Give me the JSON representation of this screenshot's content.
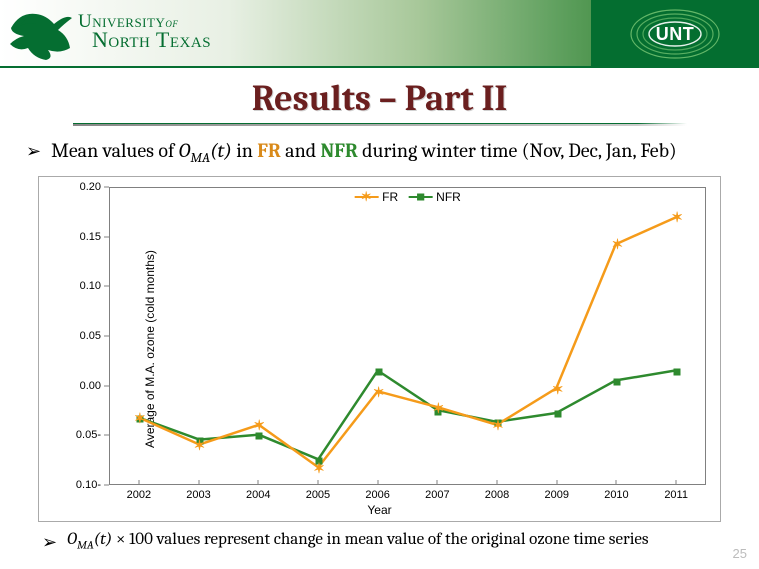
{
  "header": {
    "university_line1_a": "University",
    "university_line1_of": "of",
    "university_line2": "North Texas",
    "badge_text": "UNT",
    "brand_green": "#056e31",
    "badge_bg": "#046e30"
  },
  "title": "Results – Part II",
  "title_color": "#6b1f1f",
  "bullet1_pre": "Mean values of ",
  "bullet1_var_a": "O",
  "bullet1_var_sub": "MA",
  "bullet1_var_b": "(t)",
  "bullet1_mid": " in ",
  "bullet1_fr": "FR",
  "bullet1_and": " and ",
  "bullet1_nfr": "NFR",
  "bullet1_post": " during winter time (Nov, Dec, Jan, Feb)",
  "bullet2": "𝑂MA(𝑡) × 100 values represent change in mean value of the original ozone time series",
  "page_number": "25",
  "chart": {
    "type": "line",
    "xlabel": "Year",
    "ylabel": "Average of M.A. ozone (cold months)",
    "background_color": "#ffffff",
    "border_color": "#808080",
    "ylim": [
      -0.1,
      0.2
    ],
    "yticks": [
      -0.1,
      -0.05,
      0.0,
      0.05,
      0.1,
      0.15,
      0.2
    ],
    "ytick_labels": [
      "-0.10",
      "-0.05",
      "0.00",
      "0.05",
      "0.10",
      "0.15",
      "0.20"
    ],
    "categories": [
      "2002",
      "2003",
      "2004",
      "2005",
      "2006",
      "2007",
      "2008",
      "2009",
      "2010",
      "2011"
    ],
    "legend_labels": {
      "fr": "FR",
      "nfr": "NFR"
    },
    "legend_position": "top-center",
    "series": {
      "fr": {
        "label": "FR",
        "color": "#f59b1a",
        "marker": "x",
        "line_width": 2.5,
        "values": [
          -0.033,
          -0.06,
          -0.04,
          -0.083,
          -0.006,
          -0.022,
          -0.04,
          -0.003,
          0.143,
          0.17
        ]
      },
      "nfr": {
        "label": "NFR",
        "color": "#2e8a2e",
        "marker": "square",
        "line_width": 2.5,
        "values": [
          -0.033,
          -0.055,
          -0.05,
          -0.075,
          0.015,
          -0.025,
          -0.037,
          -0.028,
          0.005,
          0.015
        ]
      }
    },
    "label_fontsize": 12,
    "tick_fontsize": 11
  }
}
